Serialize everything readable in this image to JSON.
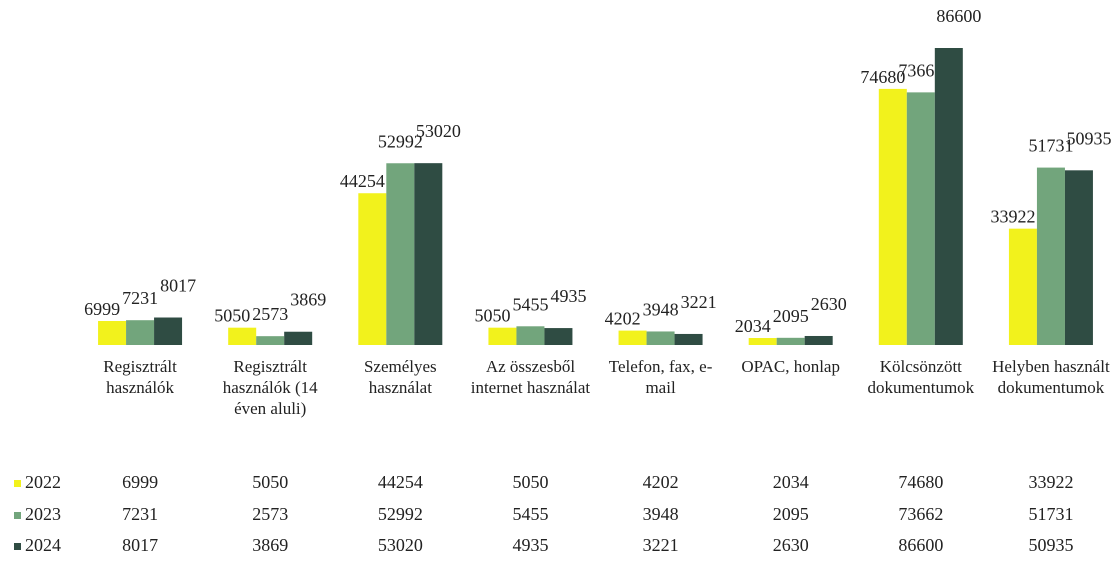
{
  "chart_data": {
    "type": "bar",
    "categories": [
      "Regisztrált használók",
      "Regisztrált használók (14 éven aluli)",
      "Személyes használat",
      "Az összesből internet használat",
      "Telefon, fax, e-mail",
      "OPAC, honlap",
      "Kölcsönzött dokumentumok",
      "Helyben használt dokumentumok"
    ],
    "series": [
      {
        "name": "2022",
        "color": "#f2f21c",
        "values": [
          6999,
          5050,
          44254,
          5050,
          4202,
          2034,
          74680,
          33922
        ]
      },
      {
        "name": "2023",
        "color": "#72a57c",
        "values": [
          7231,
          2573,
          52992,
          5455,
          3948,
          2095,
          73662,
          51731
        ]
      },
      {
        "name": "2024",
        "color": "#2f4c43",
        "values": [
          8017,
          3869,
          53020,
          4935,
          3221,
          2630,
          86600,
          50935
        ]
      }
    ]
  }
}
